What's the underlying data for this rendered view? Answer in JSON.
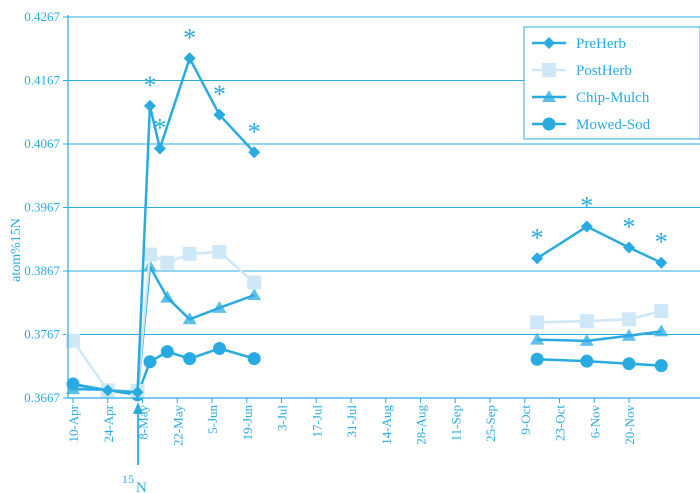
{
  "colors": {
    "accent": "#29abe2",
    "light": "#cfe8f7",
    "grid": "#29abe2"
  },
  "chart_data": {
    "type": "line",
    "title": "",
    "xlabel": "",
    "ylabel": "atom%15N",
    "ylim": [
      0.3667,
      0.4267
    ],
    "yticks": [
      "0.3667",
      "0.3767",
      "0.3867",
      "0.3967",
      "0.4067",
      "0.4167",
      "0.4267"
    ],
    "grid": "horizontal",
    "legend_position": "top-right",
    "x_ticks": [
      "10-Apr",
      "24-Apr",
      "8-May",
      "22-May",
      "5-Jun",
      "19-Jun",
      "3-Jul",
      "17-Jul",
      "31-Jul",
      "14-Aug",
      "28-Aug",
      "11-Sep",
      "25-Sep",
      "9-Oct",
      "23-Oct",
      "6-Nov",
      "20-Nov"
    ],
    "annotation": {
      "label_main": "15",
      "label_sub": "N",
      "x": "6-May"
    },
    "series": [
      {
        "name": "PreHerb",
        "marker": "diamond",
        "segments": [
          [
            [
              "10-Apr",
              0.3688
            ],
            [
              "24-Apr",
              0.3679
            ],
            [
              "6-May",
              0.3676
            ],
            [
              "11-May",
              0.4127
            ],
            [
              "15-May",
              0.406
            ],
            [
              "27-May",
              0.4202
            ],
            [
              "8-Jun",
              0.4113
            ],
            [
              "22-Jun",
              0.4054
            ]
          ],
          [
            [
              "14-Oct",
              0.3887
            ],
            [
              "3-Nov",
              0.3937
            ],
            [
              "20-Nov",
              0.3904
            ],
            [
              "3-Dec",
              0.388
            ]
          ]
        ],
        "significance": [
          [
            "11-May",
            "*"
          ],
          [
            "15-May",
            "*"
          ],
          [
            "27-May",
            "*"
          ],
          [
            "8-Jun",
            "*"
          ],
          [
            "22-Jun",
            "*"
          ],
          [
            "14-Oct",
            "*"
          ],
          [
            "3-Nov",
            "*"
          ],
          [
            "20-Nov",
            "*"
          ],
          [
            "3-Dec",
            "*"
          ]
        ]
      },
      {
        "name": "PostHerb",
        "marker": "square",
        "segments": [
          [
            [
              "10-Apr",
              0.3757
            ],
            [
              "24-Apr",
              0.3679
            ],
            [
              "6-May",
              0.3678
            ],
            [
              "11-May",
              0.3893
            ],
            [
              "18-May",
              0.388
            ],
            [
              "27-May",
              0.3894
            ],
            [
              "8-Jun",
              0.3897
            ],
            [
              "22-Jun",
              0.3849
            ]
          ],
          [
            [
              "14-Oct",
              0.3786
            ],
            [
              "3-Nov",
              0.3788
            ],
            [
              "20-Nov",
              0.3791
            ],
            [
              "3-Dec",
              0.3804
            ]
          ]
        ]
      },
      {
        "name": "Chip-Mulch",
        "marker": "triangle",
        "segments": [
          [
            [
              "10-Apr",
              0.3681
            ],
            [
              "24-Apr",
              0.368
            ],
            [
              "6-May",
              0.3674
            ],
            [
              "11-May",
              0.3874
            ],
            [
              "18-May",
              0.3825
            ],
            [
              "27-May",
              0.3791
            ],
            [
              "8-Jun",
              0.3809
            ],
            [
              "22-Jun",
              0.3829
            ]
          ],
          [
            [
              "14-Oct",
              0.3759
            ],
            [
              "3-Nov",
              0.3757
            ],
            [
              "20-Nov",
              0.3765
            ],
            [
              "3-Dec",
              0.3772
            ]
          ]
        ]
      },
      {
        "name": "Mowed-Sod",
        "marker": "circle",
        "segments": [
          [
            [
              "10-Apr",
              0.3689
            ],
            [
              "24-Apr",
              0.3679
            ],
            [
              "6-May",
              0.3672
            ],
            [
              "11-May",
              0.3724
            ],
            [
              "18-May",
              0.374
            ],
            [
              "27-May",
              0.3729
            ],
            [
              "8-Jun",
              0.3745
            ],
            [
              "22-Jun",
              0.3729
            ]
          ],
          [
            [
              "14-Oct",
              0.3728
            ],
            [
              "3-Nov",
              0.3725
            ],
            [
              "20-Nov",
              0.3721
            ],
            [
              "3-Dec",
              0.3718
            ]
          ]
        ]
      }
    ]
  }
}
